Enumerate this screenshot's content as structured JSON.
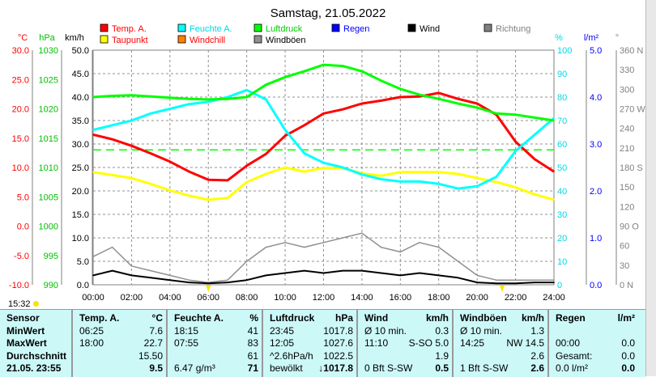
{
  "title": "Samstag, 21.05.2022",
  "current_time": "15:32",
  "legend": [
    {
      "label": "Temp. A.",
      "color": "#ff0000",
      "text_color": "#ff0000"
    },
    {
      "label": "Taupunkt",
      "color": "#ffff00",
      "text_color": "#ff0000"
    },
    {
      "label": "Feuchte A.",
      "color": "#00ffff",
      "text_color": "#00d8e8"
    },
    {
      "label": "Windchill",
      "color": "#ff8000",
      "text_color": "#ff0000"
    },
    {
      "label": "Luftdruck",
      "color": "#00ff00",
      "text_color": "#00d000"
    },
    {
      "label": "Windböen",
      "color": "#909090",
      "text_color": "#000000"
    },
    {
      "label": "Regen",
      "color": "#0000ff",
      "text_color": "#0000ff"
    },
    {
      "label": "Wind",
      "color": "#000000",
      "text_color": "#000000"
    },
    {
      "label": "Richtung",
      "color": "#808080",
      "text_color": "#808080"
    }
  ],
  "chart_data": {
    "type": "line",
    "title": "Samstag, 21.05.2022",
    "x": [
      0,
      1,
      2,
      3,
      4,
      5,
      6,
      7,
      8,
      9,
      10,
      11,
      12,
      13,
      14,
      15,
      16,
      17,
      18,
      19,
      20,
      21,
      22,
      23,
      24
    ],
    "x_ticks": [
      "00:00",
      "02:00",
      "04:00",
      "06:00",
      "08:00",
      "10:00",
      "12:00",
      "14:00",
      "16:00",
      "18:00",
      "20:00",
      "22:00",
      "24:00"
    ],
    "axes": {
      "temp": {
        "unit": "°C",
        "range": [
          -10,
          30
        ],
        "ticks": [
          "30.0",
          "25.0",
          "20.0",
          "15.0",
          "10.0",
          "5.0",
          "0.0",
          "-5.0",
          "-10.0"
        ]
      },
      "pressure": {
        "unit": "hPa",
        "range": [
          990,
          1030
        ],
        "ticks": [
          "1030",
          "1025",
          "1020",
          "1015",
          "1010",
          "1005",
          "1000",
          "995",
          "990"
        ]
      },
      "wind": {
        "unit": "km/h",
        "range": [
          0,
          50
        ],
        "ticks": [
          "50.0",
          "45.0",
          "40.0",
          "35.0",
          "30.0",
          "25.0",
          "20.0",
          "15.0",
          "10.0",
          "5.0",
          "0.0"
        ]
      },
      "humidity": {
        "unit": "%",
        "range": [
          0,
          100
        ],
        "ticks": [
          "100",
          "90",
          "80",
          "70",
          "60",
          "50",
          "40",
          "30",
          "20",
          "10",
          "0"
        ]
      },
      "rain": {
        "unit": "l/m²",
        "range": [
          0,
          5
        ],
        "ticks": [
          "5.0",
          "4.0",
          "3.0",
          "2.0",
          "1.0",
          "0.0"
        ]
      },
      "direction": {
        "unit": "°",
        "range": [
          0,
          360
        ],
        "ticks": [
          "360 N",
          "330",
          "300",
          "270 W",
          "240",
          "210",
          "180 S",
          "150",
          "120",
          "90 O",
          "60",
          "30",
          "0 N"
        ]
      }
    },
    "reference_line_hPa": 1013,
    "sunrise_hour": 6.0,
    "sunset_hour": 21.3,
    "series": [
      {
        "name": "Temp. A.",
        "axis": "temp",
        "color": "#ff0000",
        "values": [
          15.6,
          14.8,
          13.7,
          12.4,
          11,
          9.3,
          7.9,
          7.8,
          10.3,
          12.3,
          15.4,
          17.2,
          19.2,
          19.9,
          20.9,
          21.4,
          22,
          22.1,
          22.7,
          21.7,
          20.9,
          19,
          14.4,
          11.4,
          9.3
        ]
      },
      {
        "name": "Taupunkt",
        "axis": "temp",
        "color": "#ffff00",
        "values": [
          9.2,
          8.7,
          8.2,
          7.2,
          6.1,
          5.2,
          4.5,
          4.8,
          7.5,
          8.9,
          10,
          9.3,
          9.9,
          9.9,
          9,
          8.6,
          9.2,
          9.2,
          9.2,
          8.9,
          8.2,
          7.5,
          6.6,
          5.4,
          4.5
        ]
      },
      {
        "name": "Feuchte A.",
        "axis": "humidity",
        "color": "#00ffff",
        "values": [
          66,
          68,
          70,
          73,
          75,
          77,
          78,
          80,
          83,
          79,
          66,
          56,
          52,
          50,
          47,
          45,
          44,
          44,
          43,
          41,
          42,
          46,
          57,
          64,
          71
        ]
      },
      {
        "name": "Luftdruck",
        "axis": "pressure",
        "color": "#00ff00",
        "values": [
          1022,
          1022.2,
          1022.3,
          1022.1,
          1021.9,
          1021.7,
          1021.6,
          1021.7,
          1022,
          1024.1,
          1025.4,
          1026.4,
          1027.5,
          1027.3,
          1026.4,
          1024.8,
          1023.4,
          1022.4,
          1021.7,
          1020.9,
          1020.2,
          1019.2,
          1019,
          1018.5,
          1018
        ]
      },
      {
        "name": "Windböen",
        "axis": "wind",
        "color": "#909090",
        "values": [
          6,
          8,
          4,
          3,
          2,
          1,
          0.5,
          1,
          5,
          8,
          9,
          8,
          9,
          10,
          11,
          8,
          7,
          9,
          8,
          5,
          2,
          1,
          1,
          1,
          1
        ]
      },
      {
        "name": "Wind",
        "axis": "wind",
        "color": "#000000",
        "values": [
          2,
          3,
          2,
          1.5,
          1,
          0.5,
          0.3,
          0.5,
          1,
          2,
          2.5,
          3,
          2.5,
          3,
          3,
          2.5,
          2,
          2.5,
          2,
          1.5,
          0.5,
          0.3,
          0.3,
          0.5,
          0.5
        ]
      }
    ]
  },
  "table": {
    "columns": [
      {
        "name": "Sensor",
        "unit": "",
        "rows": [
          [
            "MinWert",
            ""
          ],
          [
            "MaxWert",
            ""
          ],
          [
            "Durchschnitt",
            ""
          ],
          [
            "21.05. 23:55",
            ""
          ]
        ]
      },
      {
        "name": "Temp. A.",
        "unit": "°C",
        "rows": [
          [
            "06:25",
            "7.6"
          ],
          [
            "18:00",
            "22.7"
          ],
          [
            "",
            "15.50"
          ],
          [
            "",
            "9.5"
          ]
        ]
      },
      {
        "name": "Feuchte A.",
        "unit": "%",
        "rows": [
          [
            "18:15",
            "41"
          ],
          [
            "07:55",
            "83"
          ],
          [
            "",
            "61"
          ],
          [
            "6.47 g/m³",
            "71"
          ]
        ]
      },
      {
        "name": "Luftdruck",
        "unit": "hPa",
        "rows": [
          [
            "23:45",
            "1017.8"
          ],
          [
            "12:05",
            "1027.6"
          ],
          [
            "^2.6hPa/h",
            "1022.5"
          ],
          [
            "bewölkt",
            "↓1017.8"
          ]
        ]
      },
      {
        "name": "Wind",
        "unit": "km/h",
        "rows": [
          [
            "Ø 10 min.",
            "0.3"
          ],
          [
            "11:10",
            "S-SO 5.0"
          ],
          [
            "",
            "1.9"
          ],
          [
            "0 Bft S-SW",
            "0.5"
          ]
        ]
      },
      {
        "name": "Windböen",
        "unit": "km/h",
        "rows": [
          [
            "Ø 10 min.",
            "1.3"
          ],
          [
            "14:25",
            "NW 14.5"
          ],
          [
            "",
            "2.6"
          ],
          [
            "1 Bft S-SW",
            "2.6"
          ]
        ]
      },
      {
        "name": "Regen",
        "unit": "l/m²",
        "rows": [
          [
            "",
            ""
          ],
          [
            "00:00",
            "0.0"
          ],
          [
            "Gesamt:",
            "0.0"
          ],
          [
            "0.0 l/m²",
            "0.0"
          ]
        ]
      }
    ]
  }
}
